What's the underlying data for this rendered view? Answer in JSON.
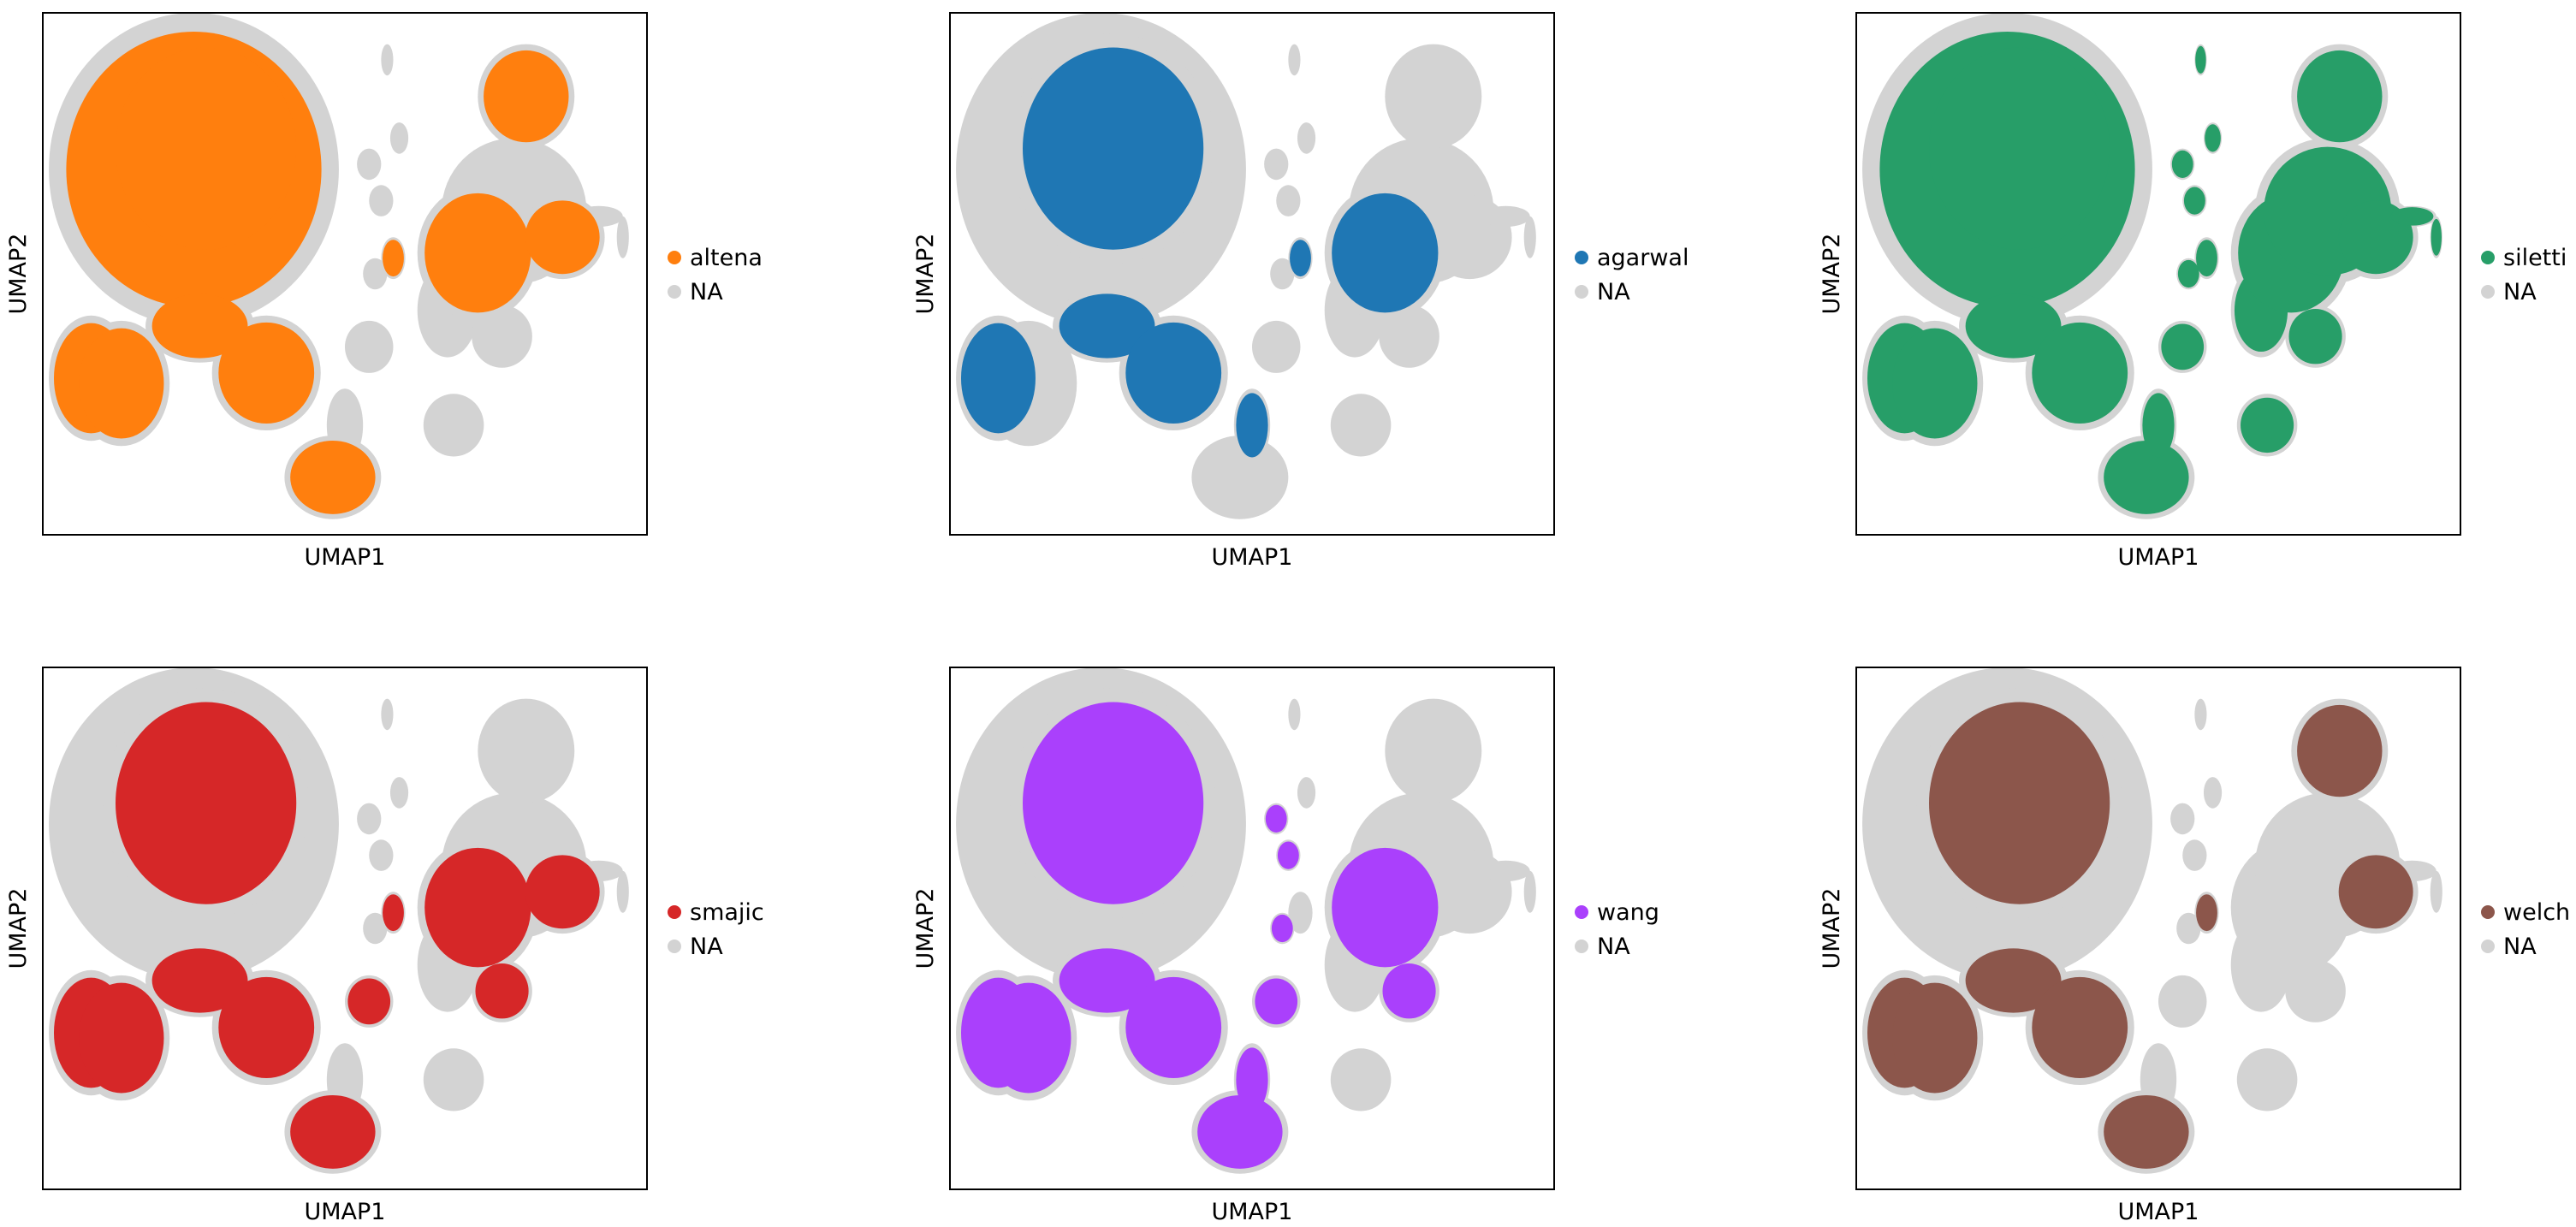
{
  "chart_data": [
    {
      "type": "scatter",
      "title": "",
      "xlabel": "UMAP1",
      "ylabel": "UMAP2",
      "grid": false,
      "ticks": false,
      "legend_placement": "right",
      "series": [
        {
          "name": "altena",
          "color": "#ff7f0e"
        },
        {
          "name": "NA",
          "color": "#d3d3d3"
        }
      ]
    },
    {
      "type": "scatter",
      "title": "",
      "xlabel": "UMAP1",
      "ylabel": "UMAP2",
      "grid": false,
      "ticks": false,
      "legend_placement": "right",
      "series": [
        {
          "name": "agarwal",
          "color": "#1f77b4"
        },
        {
          "name": "NA",
          "color": "#d3d3d3"
        }
      ]
    },
    {
      "type": "scatter",
      "title": "",
      "xlabel": "UMAP1",
      "ylabel": "UMAP2",
      "grid": false,
      "ticks": false,
      "legend_placement": "right",
      "series": [
        {
          "name": "siletti",
          "color": "#279e68"
        },
        {
          "name": "NA",
          "color": "#d3d3d3"
        }
      ]
    },
    {
      "type": "scatter",
      "title": "",
      "xlabel": "UMAP1",
      "ylabel": "UMAP2",
      "grid": false,
      "ticks": false,
      "legend_placement": "right",
      "series": [
        {
          "name": "smajic",
          "color": "#d62728"
        },
        {
          "name": "NA",
          "color": "#d3d3d3"
        }
      ]
    },
    {
      "type": "scatter",
      "title": "",
      "xlabel": "UMAP1",
      "ylabel": "UMAP2",
      "grid": false,
      "ticks": false,
      "legend_placement": "right",
      "series": [
        {
          "name": "wang",
          "color": "#aa40fc"
        },
        {
          "name": "NA",
          "color": "#d3d3d3"
        }
      ]
    },
    {
      "type": "scatter",
      "title": "",
      "xlabel": "UMAP1",
      "ylabel": "UMAP2",
      "grid": false,
      "ticks": false,
      "legend_placement": "right",
      "series": [
        {
          "name": "welch",
          "color": "#8c564b"
        },
        {
          "name": "NA",
          "color": "#d3d3d3"
        }
      ]
    }
  ]
}
